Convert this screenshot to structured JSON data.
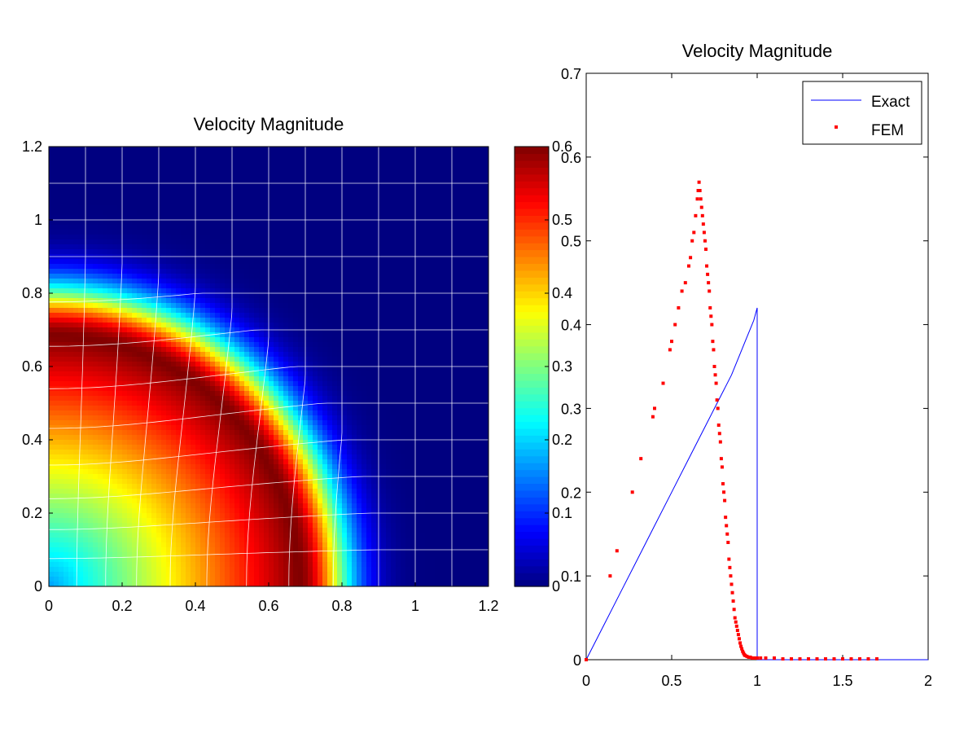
{
  "chart_data": [
    {
      "type": "heatmap",
      "title": "Velocity Magnitude",
      "xlim": [
        0,
        1.2
      ],
      "ylim": [
        0,
        1.2
      ],
      "x_ticks": [
        "0",
        "0.2",
        "0.4",
        "0.6",
        "0.8",
        "1",
        "1.2"
      ],
      "y_ticks": [
        "0",
        "0.2",
        "0.4",
        "0.6",
        "0.8",
        "1",
        "1.2"
      ],
      "colormap": "jet",
      "color_range": [
        0,
        0.6
      ],
      "colorbar_ticks": [
        "0",
        "0.1",
        "0.2",
        "0.3",
        "0.4",
        "0.5",
        "0.6"
      ],
      "field_description": "radial ring; value rises linearly to peak at r≈0.68, then drops to ~0 by r≈0.9",
      "field_peak_value": 0.6,
      "field_peak_radius": 0.68,
      "mesh": "deformed quadrilateral grid (white lines), spacing 0.1",
      "grid_line_color": "#ffffff"
    },
    {
      "type": "scatter",
      "title": "Velocity Magnitude",
      "xlim": [
        0,
        2
      ],
      "ylim": [
        0,
        0.7
      ],
      "x_ticks": [
        "0",
        "0.5",
        "1",
        "1.5",
        "2"
      ],
      "y_ticks": [
        "0",
        "0.1",
        "0.2",
        "0.3",
        "0.4",
        "0.5",
        "0.6",
        "0.7"
      ],
      "legend_position": "top-right",
      "series": [
        {
          "name": "Exact",
          "type": "line",
          "color": "#0000ff",
          "x": [
            0,
            0.1,
            0.2,
            0.3,
            0.4,
            0.5,
            0.6,
            0.7,
            0.75,
            0.8,
            0.85,
            0.9,
            0.93,
            0.96,
            0.98,
            1.0,
            1.0,
            2.0
          ],
          "y": [
            0,
            0.04,
            0.08,
            0.12,
            0.16,
            0.2,
            0.24,
            0.28,
            0.3,
            0.32,
            0.34,
            0.365,
            0.38,
            0.395,
            0.405,
            0.42,
            0.0,
            0.0
          ]
        },
        {
          "name": "FEM",
          "type": "scatter",
          "color": "#ff0000",
          "x": [
            0.0,
            0.14,
            0.18,
            0.27,
            0.32,
            0.39,
            0.4,
            0.45,
            0.49,
            0.5,
            0.52,
            0.54,
            0.56,
            0.58,
            0.6,
            0.61,
            0.62,
            0.63,
            0.64,
            0.65,
            0.655,
            0.66,
            0.665,
            0.67,
            0.675,
            0.68,
            0.685,
            0.69,
            0.695,
            0.7,
            0.705,
            0.71,
            0.715,
            0.72,
            0.725,
            0.73,
            0.735,
            0.74,
            0.745,
            0.75,
            0.755,
            0.76,
            0.765,
            0.77,
            0.775,
            0.78,
            0.785,
            0.79,
            0.795,
            0.8,
            0.805,
            0.81,
            0.815,
            0.82,
            0.825,
            0.83,
            0.835,
            0.84,
            0.845,
            0.85,
            0.855,
            0.86,
            0.865,
            0.87,
            0.875,
            0.88,
            0.885,
            0.89,
            0.895,
            0.9,
            0.905,
            0.91,
            0.915,
            0.92,
            0.925,
            0.93,
            0.94,
            0.95,
            0.96,
            0.97,
            0.98,
            0.99,
            1.0,
            1.02,
            1.05,
            1.1,
            1.15,
            1.2,
            1.25,
            1.3,
            1.35,
            1.4,
            1.45,
            1.5,
            1.55,
            1.6,
            1.65,
            1.7
          ],
          "y": [
            0.0,
            0.1,
            0.13,
            0.2,
            0.24,
            0.29,
            0.3,
            0.33,
            0.37,
            0.38,
            0.4,
            0.42,
            0.44,
            0.45,
            0.47,
            0.48,
            0.5,
            0.51,
            0.53,
            0.55,
            0.56,
            0.57,
            0.56,
            0.55,
            0.54,
            0.53,
            0.52,
            0.51,
            0.5,
            0.49,
            0.47,
            0.46,
            0.45,
            0.44,
            0.42,
            0.41,
            0.4,
            0.38,
            0.37,
            0.35,
            0.34,
            0.33,
            0.31,
            0.3,
            0.28,
            0.27,
            0.26,
            0.24,
            0.23,
            0.21,
            0.2,
            0.19,
            0.17,
            0.16,
            0.15,
            0.14,
            0.12,
            0.11,
            0.1,
            0.09,
            0.08,
            0.07,
            0.06,
            0.05,
            0.045,
            0.04,
            0.035,
            0.03,
            0.025,
            0.02,
            0.016,
            0.013,
            0.01,
            0.008,
            0.006,
            0.005,
            0.004,
            0.003,
            0.003,
            0.002,
            0.002,
            0.002,
            0.002,
            0.002,
            0.002,
            0.002,
            0.001,
            0.001,
            0.001,
            0.001,
            0.001,
            0.001,
            0.001,
            0.001,
            0.001,
            0.001,
            0.001,
            0.001
          ]
        }
      ]
    }
  ]
}
